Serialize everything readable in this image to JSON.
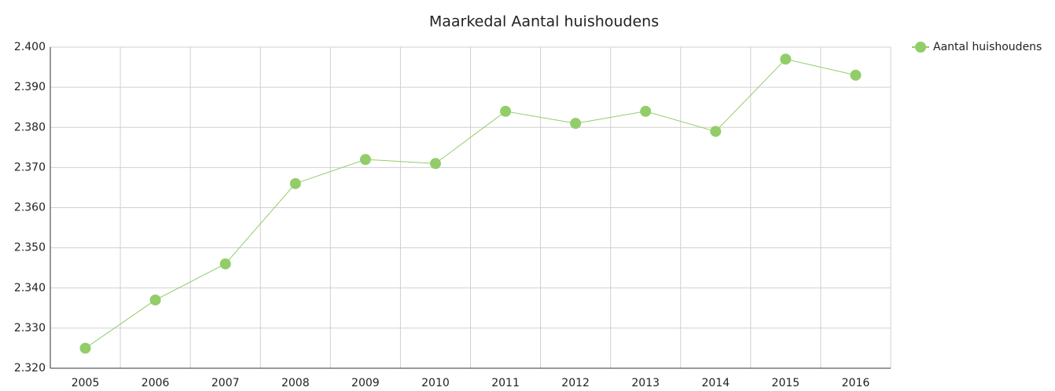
{
  "chart_data": {
    "type": "line",
    "title": "Maarkedal  Aantal huishoudens",
    "categories": [
      "2005",
      "2006",
      "2007",
      "2008",
      "2009",
      "2010",
      "2011",
      "2012",
      "2013",
      "2014",
      "2015",
      "2016"
    ],
    "series": [
      {
        "name": "Aantal huishoudens",
        "color": "#92cd6a",
        "values": [
          2325,
          2337,
          2346,
          2366,
          2372,
          2371,
          2384,
          2381,
          2384,
          2379,
          2397,
          2393
        ]
      }
    ],
    "ylim": [
      2320,
      2400
    ],
    "yticks": [
      {
        "value": 2320,
        "label": "2.320"
      },
      {
        "value": 2330,
        "label": "2.330"
      },
      {
        "value": 2340,
        "label": "2.340"
      },
      {
        "value": 2350,
        "label": "2.350"
      },
      {
        "value": 2360,
        "label": "2.360"
      },
      {
        "value": 2370,
        "label": "2.370"
      },
      {
        "value": 2380,
        "label": "2.380"
      },
      {
        "value": 2390,
        "label": "2.390"
      },
      {
        "value": 2400,
        "label": "2.400"
      }
    ],
    "grid": true,
    "legend": "right"
  }
}
